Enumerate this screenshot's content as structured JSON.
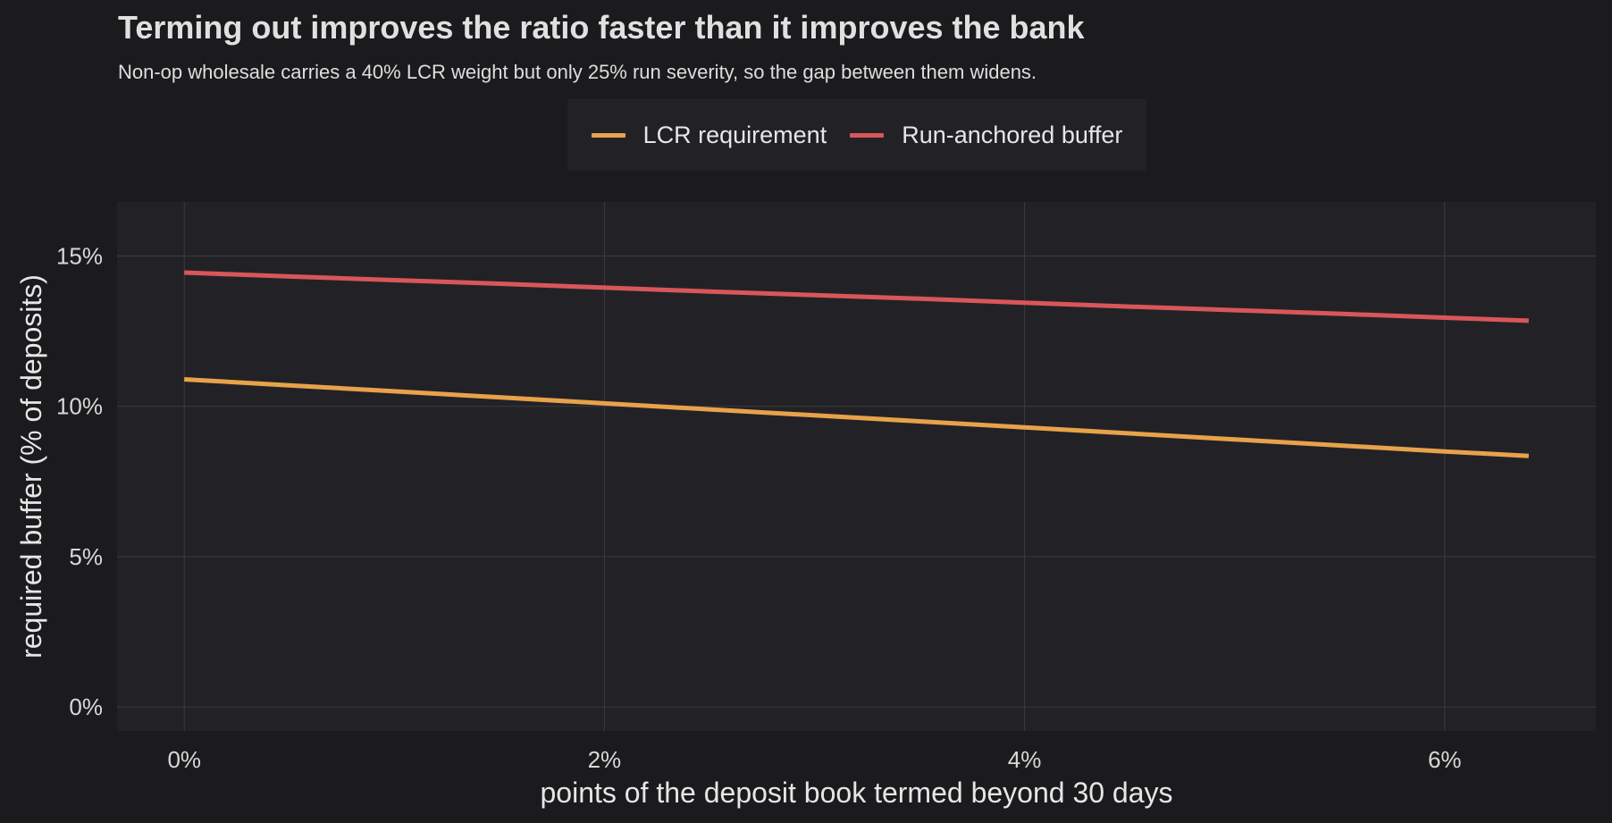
{
  "title": "Terming out improves the ratio faster than it improves the bank",
  "subtitle": "Non-op wholesale carries a 40% LCR weight but only 25% run severity, so the gap between them widens.",
  "colors": {
    "background": "#1b1b1e",
    "panel": "#222226",
    "grid": "#3a3a40",
    "lcr": "#e8a24a",
    "run": "#d9565a"
  },
  "legend": {
    "position": "top",
    "items": [
      {
        "label": "LCR requirement",
        "color": "#e8a24a"
      },
      {
        "label": "Run-anchored buffer",
        "color": "#d9565a"
      }
    ]
  },
  "chart_data": {
    "type": "line",
    "title": "Terming out improves the ratio faster than it improves the bank",
    "subtitle": "Non-op wholesale carries a 40% LCR weight but only 25% run severity, so the gap between them widens.",
    "xlabel": "points of the deposit book termed beyond 30 days",
    "ylabel": "required buffer (% of deposits)",
    "xlim": [
      -0.32,
      6.72
    ],
    "ylim": [
      -0.8,
      16.8
    ],
    "xticks": [
      0,
      2,
      4,
      6
    ],
    "xtick_labels": [
      "0%",
      "2%",
      "4%",
      "6%"
    ],
    "yticks": [
      0,
      5,
      10,
      15
    ],
    "ytick_labels": [
      "0%",
      "5%",
      "10%",
      "15%"
    ],
    "grid": true,
    "legend": "top",
    "series": [
      {
        "name": "LCR requirement",
        "color": "#e8a24a",
        "x": [
          0,
          0.5,
          1,
          1.5,
          2,
          2.5,
          3,
          3.5,
          4,
          4.5,
          5,
          5.5,
          6,
          6.4
        ],
        "values": [
          10.9,
          10.7,
          10.5,
          10.3,
          10.1,
          9.9,
          9.7,
          9.5,
          9.3,
          9.1,
          8.9,
          8.7,
          8.5,
          8.35
        ]
      },
      {
        "name": "Run-anchored buffer",
        "color": "#d9565a",
        "x": [
          0,
          0.5,
          1,
          1.5,
          2,
          2.5,
          3,
          3.5,
          4,
          4.5,
          5,
          5.5,
          6,
          6.4
        ],
        "values": [
          14.45,
          14.32,
          14.2,
          14.08,
          13.95,
          13.82,
          13.7,
          13.58,
          13.45,
          13.32,
          13.2,
          13.08,
          12.95,
          12.85
        ]
      }
    ]
  }
}
